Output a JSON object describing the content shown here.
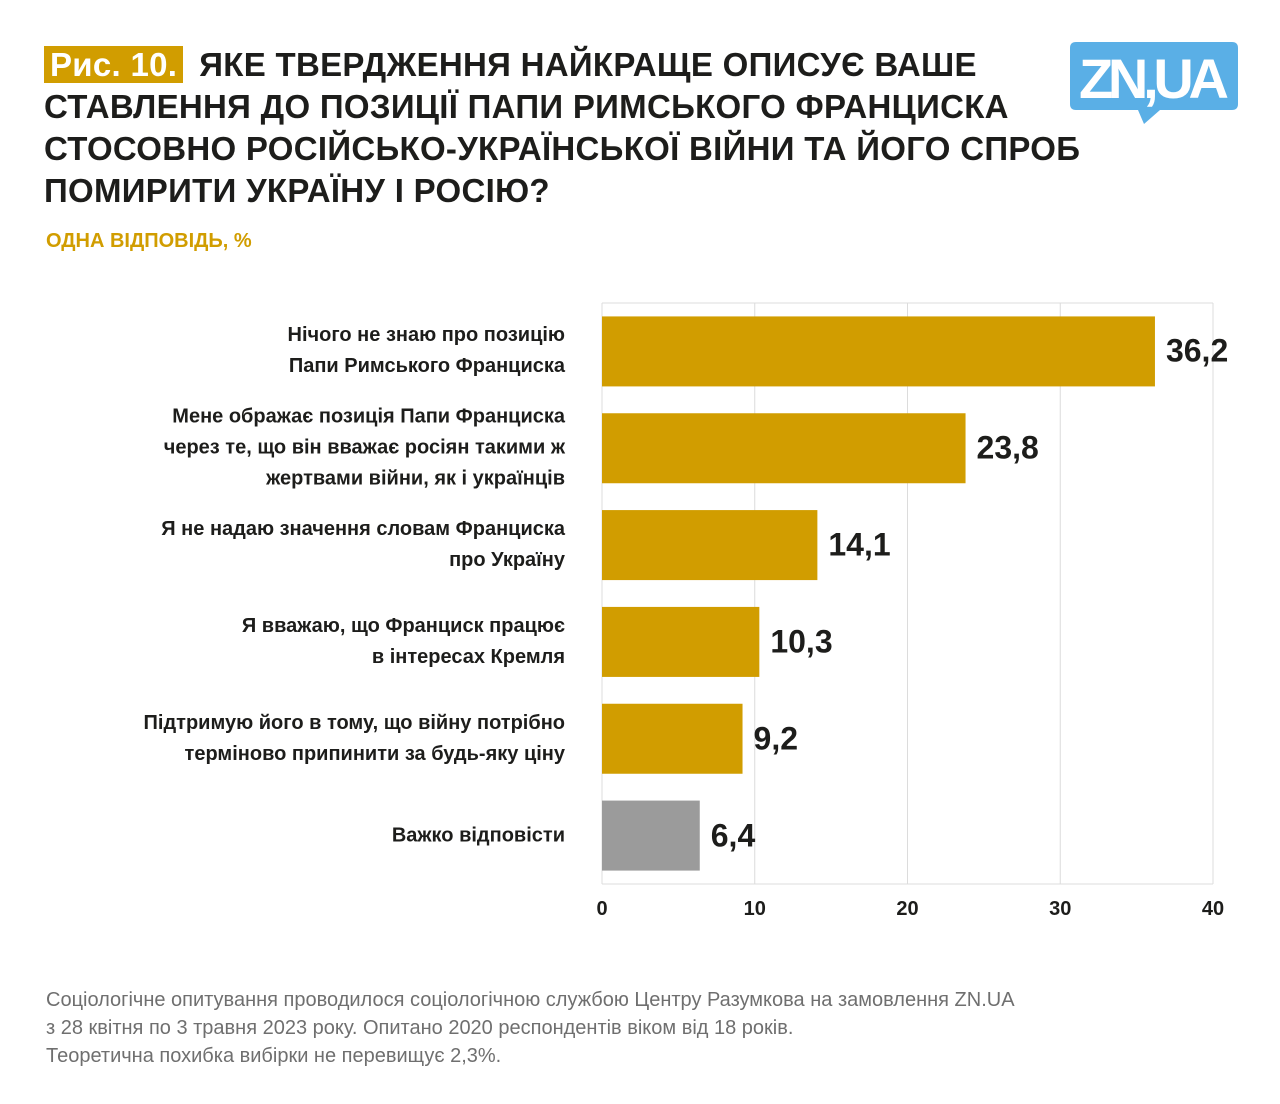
{
  "header": {
    "figure_label": "Рис. 10.",
    "title": "ЯКЕ ТВЕРДЖЕННЯ НАЙКРАЩЕ ОПИСУЄ ВАШЕ СТАВЛЕННЯ ДО  ПОЗИЦІЇ ПАПИ РИМСЬКОГО ФРАНЦИСКА СТОСОВНО РОСІЙСЬКО-УКРАЇНСЬКОЇ ВІЙНИ ТА ЙОГО СПРОБ ПОМИРИТИ УКРАЇНУ І РОСІЮ?",
    "subtitle": "ОДНА ВІДПОВІДЬ, %"
  },
  "logo": {
    "text": "ZN,UA",
    "color": "#5aafe6"
  },
  "chart_data": {
    "type": "bar",
    "orientation": "horizontal",
    "categories": [
      "Нічого не знаю про позицію\nПапи Римського Франциска",
      "Мене ображає позиція Папи Франциска\nчерез те, що він вважає росіян такими ж\nжертвами війни, як і українців",
      "Я  не надаю значення словам Франциска\nпро Україну",
      "Я вважаю, що Франциск працює\nв інтересах Кремля",
      "Підтримую його в тому, що війну потрібно\nтерміново припинити за будь-яку ціну",
      "Важко відповісти"
    ],
    "values": [
      36.2,
      23.8,
      14.1,
      10.3,
      9.2,
      6.4
    ],
    "value_labels": [
      "36,2",
      "23,8",
      "14,1",
      "10,3",
      "9,2",
      "6,4"
    ],
    "colors": [
      "#d19d00",
      "#d19d00",
      "#d19d00",
      "#d19d00",
      "#d19d00",
      "#9b9b9b"
    ],
    "xlim": [
      0,
      40
    ],
    "xticks": [
      "0",
      "10",
      "20",
      "30",
      "40"
    ],
    "grid": true
  },
  "footer": {
    "note": "Соціологічне опитування проводилося соціологічною службою Центру Разумкова на замовлення ZN.UA\nз 28 квітня по 3 травня 2023 року. Опитано 2020 респондентів віком від 18 років.\nТеоретична похибка вибірки не перевищує 2,3%."
  }
}
